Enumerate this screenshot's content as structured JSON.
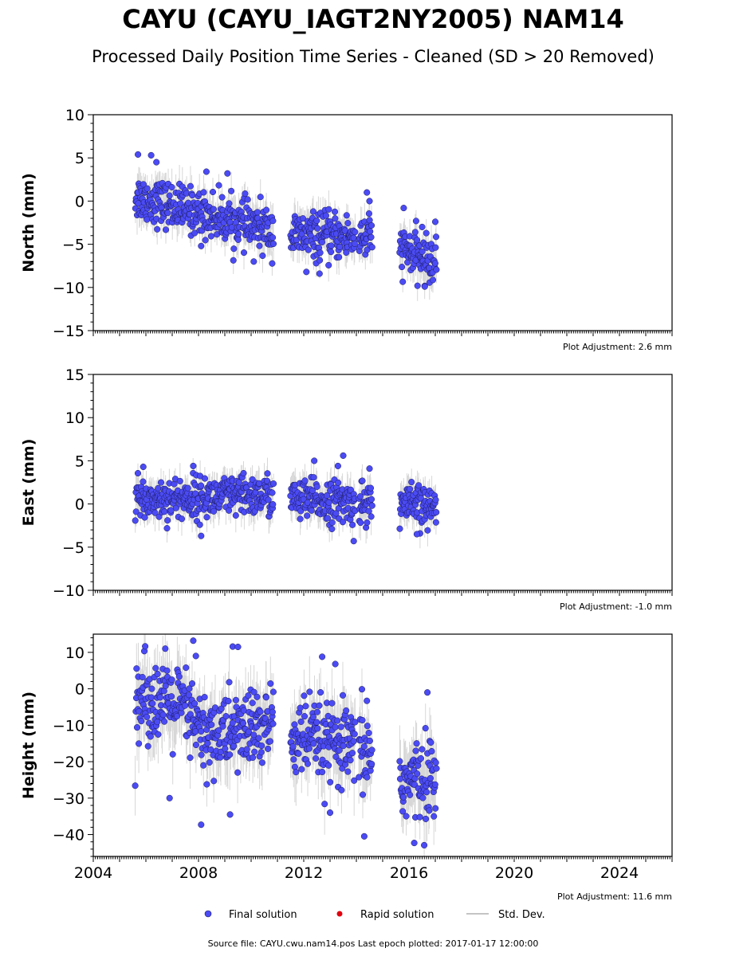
{
  "figure": {
    "title": "CAYU (CAYU_IAGT2NY2005) NAM14",
    "subtitle": "Processed Daily Position Time Series - Cleaned (SD > 20 Removed)",
    "source_line": "Source file: CAYU.cwu.nam14.pos  Last epoch plotted: 2017-01-17 12:00:00"
  },
  "legend": {
    "final": "Final solution",
    "rapid": "Rapid solution",
    "stddev": "Std. Dev."
  },
  "colors": {
    "final_point": "#4b4bf5",
    "final_edge": "#1a1a5a",
    "rapid_point": "#e0000f",
    "stddev_line": "#b0b0b0"
  },
  "chart_data": {
    "type": "scatter",
    "x_range": [
      2004,
      2026
    ],
    "x_ticks": [
      "2004",
      "2008",
      "2012",
      "2016",
      "2020",
      "2024"
    ],
    "data_segments": [
      [
        2005.6,
        2010.85
      ],
      [
        2011.5,
        2013.95
      ],
      [
        2014.1,
        2014.6
      ],
      [
        2015.65,
        2017.05
      ]
    ],
    "panels": [
      {
        "ylabel": "North (mm)",
        "ylim": [
          -15,
          10
        ],
        "yticks": [
          "−15",
          "−10",
          "−5",
          "0",
          "5",
          "10"
        ],
        "adjustment": "Plot Adjustment: 2.6 mm",
        "trend": [
          [
            2005.6,
            0.5
          ],
          [
            2010.85,
            -3.5
          ],
          [
            2011.5,
            -4
          ],
          [
            2014.6,
            -4.2
          ],
          [
            2015.65,
            -5.5
          ],
          [
            2017.05,
            -7.3
          ]
        ],
        "scatter_sd": 1.3,
        "outliers": [
          [
            2005.7,
            5.4
          ],
          [
            2006.2,
            5.3
          ],
          [
            2006.4,
            4.5
          ],
          [
            2008.3,
            3.4
          ],
          [
            2008.1,
            -5.2
          ],
          [
            2009.1,
            3.2
          ],
          [
            2010.1,
            -7
          ],
          [
            2012.1,
            -8.2
          ],
          [
            2012.6,
            -8.4
          ],
          [
            2014.4,
            1
          ],
          [
            2014.5,
            0
          ],
          [
            2015.8,
            -0.8
          ],
          [
            2016.5,
            -3
          ],
          [
            2017.0,
            -2.4
          ],
          [
            2016.6,
            -9.9
          ]
        ]
      },
      {
        "ylabel": "East (mm)",
        "ylim": [
          -10,
          15
        ],
        "yticks": [
          "−10",
          "−5",
          "0",
          "5",
          "10",
          "15"
        ],
        "adjustment": "Plot Adjustment: -1.0 mm",
        "trend": [
          [
            2005.6,
            0.5
          ],
          [
            2010.85,
            1
          ],
          [
            2011.5,
            0.5
          ],
          [
            2014.6,
            0
          ],
          [
            2015.65,
            0
          ],
          [
            2017.05,
            -0.5
          ]
        ],
        "scatter_sd": 1.2,
        "outliers": [
          [
            2005.9,
            4.3
          ],
          [
            2007.8,
            4.4
          ],
          [
            2008.1,
            -3.7
          ],
          [
            2012.4,
            5
          ],
          [
            2013.3,
            4.4
          ],
          [
            2013.5,
            5.6
          ],
          [
            2013.9,
            -4.3
          ],
          [
            2014.5,
            4.1
          ],
          [
            2016.3,
            -3.5
          ]
        ]
      },
      {
        "ylabel": "Height (mm)",
        "ylim": [
          -46,
          15
        ],
        "yticks": [
          "−40",
          "−30",
          "−20",
          "−10",
          "0",
          "10"
        ],
        "adjustment": "Plot Adjustment: 11.6 mm",
        "trend": [
          [
            2005.6,
            -2
          ],
          [
            2007.4,
            -5
          ],
          [
            2008.2,
            -13
          ],
          [
            2010.85,
            -10
          ],
          [
            2011.5,
            -13
          ],
          [
            2014.6,
            -18
          ],
          [
            2015.65,
            -26
          ],
          [
            2017.05,
            -24
          ]
        ],
        "scatter_sd": 5.5,
        "outliers": [
          [
            2007.8,
            13.2
          ],
          [
            2007.9,
            9
          ],
          [
            2009.3,
            11.6
          ],
          [
            2009.5,
            11.5
          ],
          [
            2008.1,
            -37.3
          ],
          [
            2006.9,
            -30
          ],
          [
            2009.2,
            -34.5
          ],
          [
            2012.7,
            8.8
          ],
          [
            2013.2,
            6.8
          ],
          [
            2014.3,
            -40.5
          ],
          [
            2014.4,
            -3.3
          ],
          [
            2016.2,
            -42.3
          ],
          [
            2016.7,
            -1
          ],
          [
            2013.0,
            -34
          ]
        ]
      }
    ]
  }
}
